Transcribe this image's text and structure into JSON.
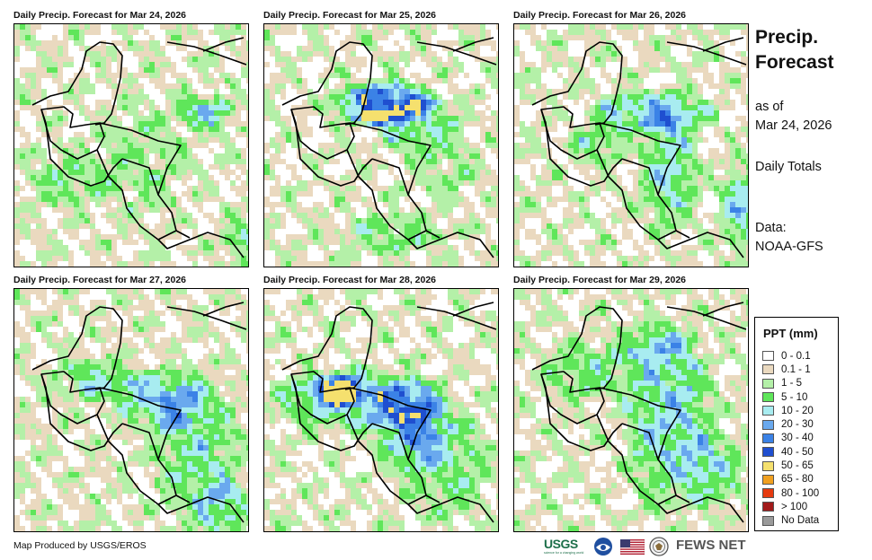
{
  "panels": [
    {
      "title": "Daily Precip. Forecast for Mar 24, 2026",
      "variant": 0
    },
    {
      "title": "Daily Precip. Forecast for Mar 25, 2026",
      "variant": 1
    },
    {
      "title": "Daily Precip. Forecast for Mar 26, 2026",
      "variant": 2
    },
    {
      "title": "Daily Precip. Forecast for Mar 27, 2026",
      "variant": 3
    },
    {
      "title": "Daily Precip. Forecast for Mar 28, 2026",
      "variant": 4
    },
    {
      "title": "Daily Precip. Forecast for Mar 29, 2026",
      "variant": 5
    }
  ],
  "sidebar": {
    "title_line1": "Precip.",
    "title_line2": "Forecast",
    "asof_line1": "as of",
    "asof_line2": "Mar 24, 2026",
    "totals": "Daily Totals",
    "data_line1": "Data:",
    "data_line2": "NOAA-GFS"
  },
  "legend": {
    "title": "PPT (mm)",
    "items": [
      {
        "label": "0 - 0.1",
        "color": "#ffffff"
      },
      {
        "label": "0.1 - 1",
        "color": "#ead9bf"
      },
      {
        "label": "1 - 5",
        "color": "#b4f0a8"
      },
      {
        "label": "5 - 10",
        "color": "#5fe65a"
      },
      {
        "label": "10 - 20",
        "color": "#a8ecf0"
      },
      {
        "label": "20 - 30",
        "color": "#6aa9ee"
      },
      {
        "label": "30 - 40",
        "color": "#3b82e6"
      },
      {
        "label": "40 - 50",
        "color": "#1f4fd0"
      },
      {
        "label": "50 - 65",
        "color": "#f5e06e"
      },
      {
        "label": "65 - 80",
        "color": "#f0a020"
      },
      {
        "label": "80 - 100",
        "color": "#e63a0f"
      },
      {
        "label": "> 100",
        "color": "#a11a1a"
      },
      {
        "label": "No Data",
        "color": "#9a9a9a"
      }
    ]
  },
  "footer": {
    "credit": "Map Produced by USGS/EROS",
    "usgs_logo": "USGS",
    "usgs_tagline": "science for a changing world",
    "fews_logo": "FEWS NET",
    "icons": [
      "noaa-logo-icon",
      "us-flag-icon",
      "state-department-seal-icon"
    ]
  }
}
